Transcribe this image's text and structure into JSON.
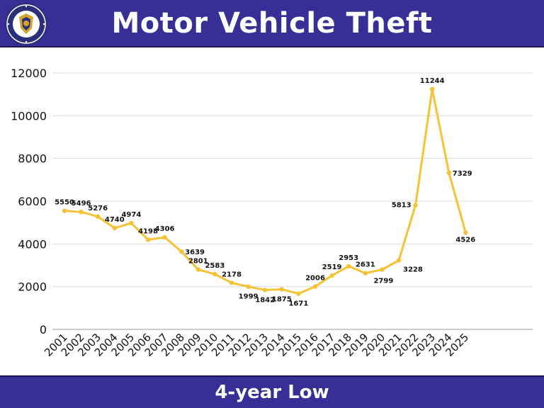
{
  "header": {
    "title": "Motor Vehicle Theft"
  },
  "footer": {
    "text": "4-year Low"
  },
  "colors": {
    "banner": "#372f95",
    "line": "#f6c235",
    "seal_gold": "#d4a52a",
    "seal_blue": "#2a2f7a"
  },
  "icons": {
    "seal": "police-department-seal-icon"
  },
  "chart_data": {
    "type": "line",
    "title": "Motor Vehicle Theft",
    "xlabel": "",
    "ylabel": "",
    "ylim": [
      0,
      12000
    ],
    "yticks": [
      0,
      2000,
      4000,
      6000,
      8000,
      10000,
      12000
    ],
    "grid": true,
    "legend": "none",
    "categories": [
      "2001",
      "2002",
      "2003",
      "2004",
      "2005",
      "2006",
      "2007",
      "2008",
      "2009",
      "2010",
      "2011",
      "2012",
      "2013",
      "2014",
      "2015",
      "2016",
      "2017",
      "2018",
      "2019",
      "2020",
      "2021",
      "2022",
      "2023",
      "2024",
      "2025"
    ],
    "series": [
      {
        "values": [
          5550,
          5496,
          5276,
          4740,
          4974,
          4198,
          4306,
          3639,
          2801,
          2583,
          2178,
          1999,
          1842,
          1875,
          1671,
          2006,
          2519,
          2953,
          2631,
          2799,
          3228,
          5813,
          11244,
          7329,
          4526
        ]
      }
    ]
  }
}
